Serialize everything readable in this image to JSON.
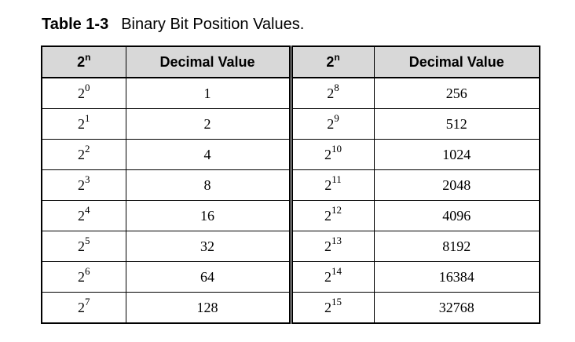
{
  "caption": {
    "label": "Table 1-3",
    "title": "Binary Bit Position Values."
  },
  "table": {
    "headers": [
      {
        "base": "2",
        "exp": "n"
      },
      {
        "text": "Decimal Value"
      },
      {
        "base": "2",
        "exp": "n"
      },
      {
        "text": "Decimal Value"
      }
    ],
    "rows": [
      {
        "left_base": "2",
        "left_exp": "0",
        "left_value": "1",
        "right_base": "2",
        "right_exp": "8",
        "right_value": "256"
      },
      {
        "left_base": "2",
        "left_exp": "1",
        "left_value": "2",
        "right_base": "2",
        "right_exp": "9",
        "right_value": "512"
      },
      {
        "left_base": "2",
        "left_exp": "2",
        "left_value": "4",
        "right_base": "2",
        "right_exp": "10",
        "right_value": "1024"
      },
      {
        "left_base": "2",
        "left_exp": "3",
        "left_value": "8",
        "right_base": "2",
        "right_exp": "11",
        "right_value": "2048"
      },
      {
        "left_base": "2",
        "left_exp": "4",
        "left_value": "16",
        "right_base": "2",
        "right_exp": "12",
        "right_value": "4096"
      },
      {
        "left_base": "2",
        "left_exp": "5",
        "left_value": "32",
        "right_base": "2",
        "right_exp": "13",
        "right_value": "8192"
      },
      {
        "left_base": "2",
        "left_exp": "6",
        "left_value": "64",
        "right_base": "2",
        "right_exp": "14",
        "right_value": "16384"
      },
      {
        "left_base": "2",
        "left_exp": "7",
        "left_value": "128",
        "right_base": "2",
        "right_exp": "15",
        "right_value": "32768"
      }
    ]
  }
}
